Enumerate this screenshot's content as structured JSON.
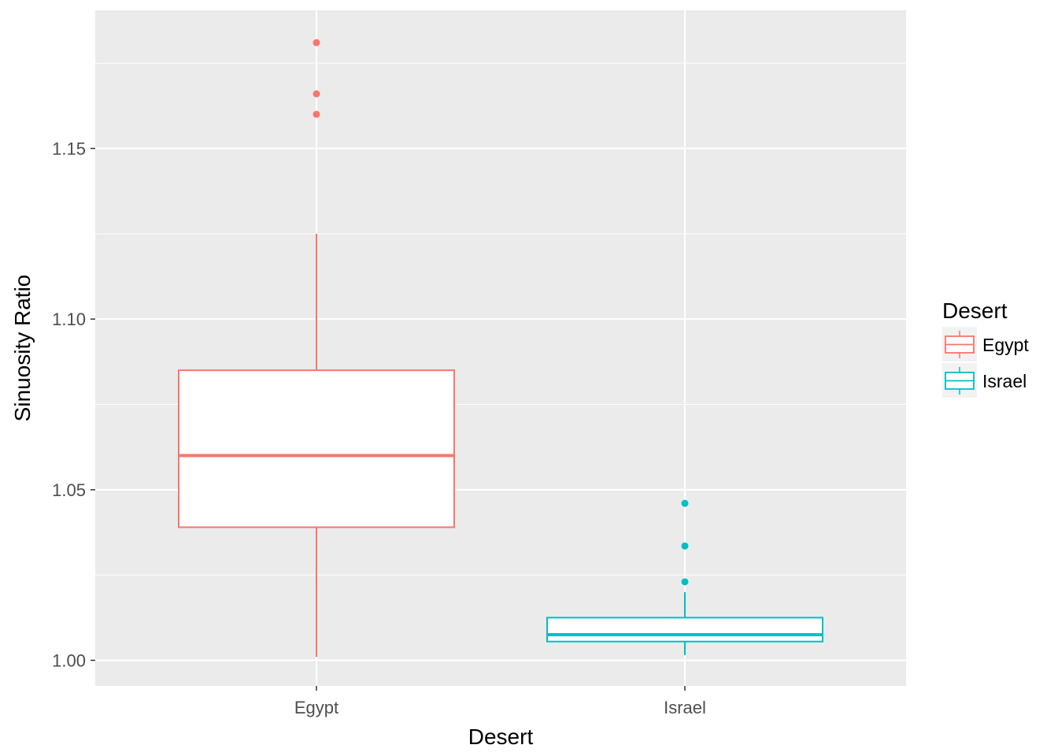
{
  "chart_data": {
    "type": "boxplot",
    "xlabel": "Desert",
    "ylabel": "Sinuosity Ratio",
    "categories": [
      "Egypt",
      "Israel"
    ],
    "ylim": [
      0.9925,
      1.1905
    ],
    "yticks": [
      1.0,
      1.05,
      1.1,
      1.15
    ],
    "ytick_labels": [
      "1.00",
      "1.05",
      "1.10",
      "1.15"
    ],
    "grid": true,
    "legend": {
      "title": "Desert",
      "placement": "right",
      "entries": [
        "Egypt",
        "Israel"
      ]
    },
    "series": [
      {
        "category": "Egypt",
        "color": "#F8766D",
        "whisker_low": 1.001,
        "q1": 1.039,
        "median": 1.06,
        "q3": 1.085,
        "whisker_high": 1.125,
        "outliers": [
          1.16,
          1.166,
          1.181
        ]
      },
      {
        "category": "Israel",
        "color": "#00BFC4",
        "whisker_low": 1.0015,
        "q1": 1.0055,
        "median": 1.0075,
        "q3": 1.0125,
        "whisker_high": 1.02,
        "outliers": [
          1.023,
          1.0335,
          1.046
        ]
      }
    ]
  }
}
